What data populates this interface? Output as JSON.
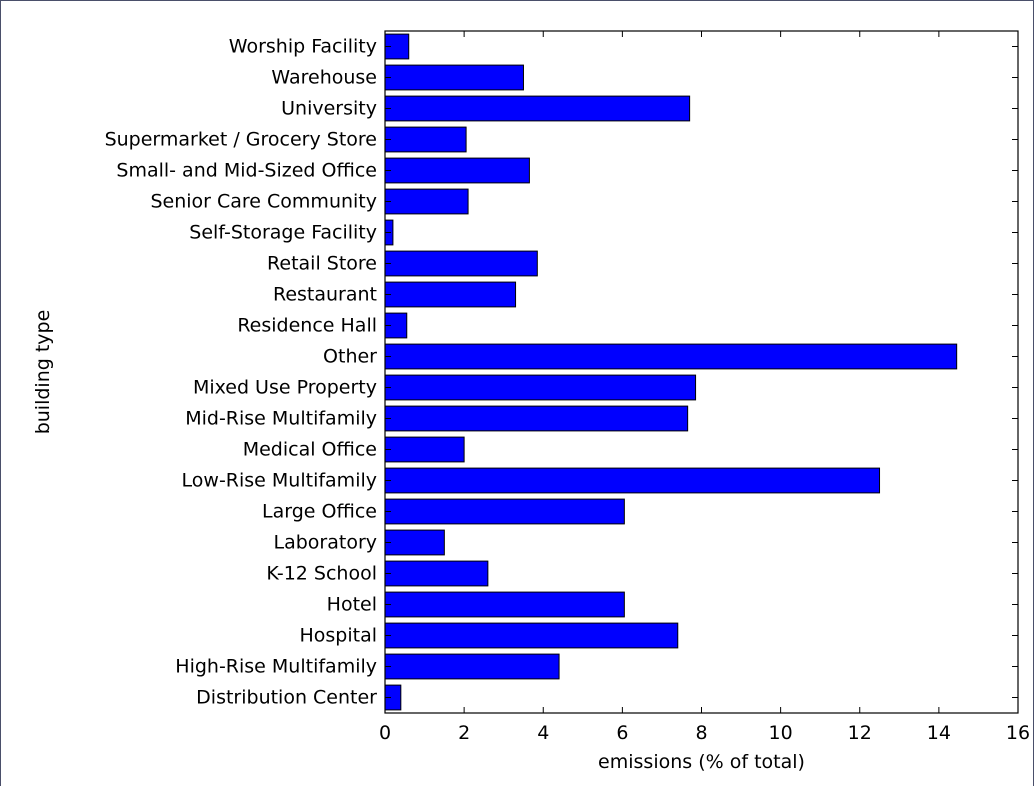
{
  "chart_data": {
    "type": "bar",
    "orientation": "horizontal",
    "categories": [
      "Worship Facility",
      "Warehouse",
      "University",
      "Supermarket / Grocery Store",
      "Small- and Mid-Sized Office",
      "Senior Care Community",
      "Self-Storage Facility",
      "Retail Store",
      "Restaurant",
      "Residence Hall",
      "Other",
      "Mixed Use Property",
      "Mid-Rise Multifamily",
      "Medical Office",
      "Low-Rise Multifamily",
      "Large Office",
      "Laboratory",
      "K-12 School",
      "Hotel",
      "Hospital",
      "High-Rise Multifamily",
      "Distribution Center"
    ],
    "values": [
      0.6,
      3.5,
      7.7,
      2.05,
      3.65,
      2.1,
      0.2,
      3.85,
      3.3,
      0.55,
      14.45,
      7.85,
      7.65,
      2.0,
      12.5,
      6.05,
      1.5,
      2.6,
      6.05,
      7.4,
      4.4,
      0.4
    ],
    "xlabel": "emissions (% of total)",
    "ylabel": "building type",
    "xlim": [
      0,
      16
    ],
    "xticks": [
      "0",
      "2",
      "4",
      "6",
      "8",
      "10",
      "12",
      "14",
      "16"
    ],
    "bar_color": "#0000ff",
    "grid": false,
    "legend": "none"
  }
}
